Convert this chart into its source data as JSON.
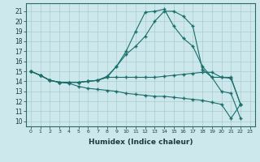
{
  "xlabel": "Humidex (Indice chaleur)",
  "background_color": "#cce8ec",
  "grid_color": "#aacccc",
  "line_color": "#1a6e6a",
  "xlim": [
    -0.5,
    23.5
  ],
  "ylim": [
    9.5,
    21.8
  ],
  "yticks": [
    10,
    11,
    12,
    13,
    14,
    15,
    16,
    17,
    18,
    19,
    20,
    21
  ],
  "xticks": [
    0,
    1,
    2,
    3,
    4,
    5,
    6,
    7,
    8,
    9,
    10,
    11,
    12,
    13,
    14,
    15,
    16,
    17,
    18,
    19,
    20,
    21,
    22,
    23
  ],
  "line1_x": [
    0,
    1,
    2,
    3,
    4,
    5,
    6,
    7,
    8,
    9,
    10,
    11,
    12,
    13,
    14,
    15,
    16,
    17,
    18,
    19,
    20,
    21,
    22
  ],
  "line1_y": [
    15.0,
    14.6,
    14.1,
    13.9,
    13.9,
    13.9,
    14.0,
    14.1,
    14.5,
    15.5,
    17.0,
    19.0,
    20.9,
    21.0,
    21.2,
    19.5,
    18.3,
    17.5,
    15.5,
    14.4,
    13.0,
    12.8,
    10.3
  ],
  "line2_x": [
    0,
    1,
    2,
    3,
    4,
    5,
    6,
    7,
    8,
    9,
    10,
    11,
    12,
    13,
    14,
    15,
    16,
    17,
    18,
    19,
    20,
    21,
    22
  ],
  "line2_y": [
    15.0,
    14.6,
    14.1,
    13.9,
    13.9,
    13.9,
    14.0,
    14.1,
    14.4,
    14.4,
    14.4,
    14.4,
    14.4,
    14.4,
    14.5,
    14.6,
    14.7,
    14.8,
    14.9,
    14.9,
    14.4,
    14.4,
    11.7
  ],
  "line3_x": [
    0,
    1,
    2,
    3,
    4,
    5,
    6,
    7,
    8,
    9,
    10,
    11,
    12,
    13,
    14,
    15,
    16,
    17,
    18,
    19,
    20,
    21,
    22
  ],
  "line3_y": [
    15.0,
    14.6,
    14.1,
    13.9,
    13.9,
    13.9,
    14.0,
    14.1,
    14.4,
    15.5,
    16.7,
    17.5,
    18.5,
    20.0,
    21.0,
    21.0,
    20.5,
    19.5,
    15.2,
    14.4,
    14.4,
    14.3,
    11.7
  ],
  "line4_x": [
    0,
    1,
    2,
    3,
    4,
    5,
    6,
    7,
    8,
    9,
    10,
    11,
    12,
    13,
    14,
    15,
    16,
    17,
    18,
    19,
    20,
    21,
    22
  ],
  "line4_y": [
    15.0,
    14.6,
    14.1,
    13.9,
    13.8,
    13.5,
    13.3,
    13.2,
    13.1,
    13.0,
    12.8,
    12.7,
    12.6,
    12.5,
    12.5,
    12.4,
    12.3,
    12.2,
    12.1,
    11.9,
    11.7,
    10.3,
    11.7
  ]
}
